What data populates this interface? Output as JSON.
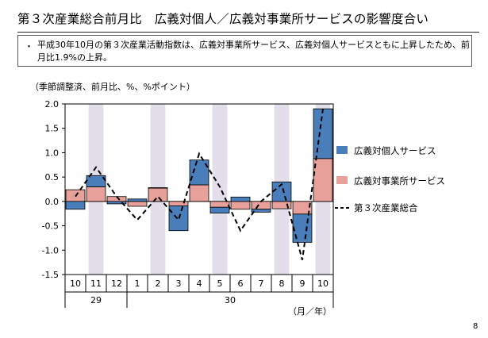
{
  "title": "第３次産業総合前月比　広義対個人／広義対事業所サービスの影響度合い",
  "summary": {
    "bullet": "・",
    "text": "平成30年10月の第３次産業活動指数は、広義対事業所サービス、広義対個人サービスともに上昇したため、前月比1.9%の上昇。"
  },
  "unit_note": "（季節調整済、前月比、%、%ポイント）",
  "page_number": "8",
  "chart_data": {
    "type": "bar",
    "stacked": true,
    "categories": [
      "10",
      "11",
      "12",
      "1",
      "2",
      "3",
      "4",
      "5",
      "6",
      "7",
      "8",
      "9",
      "10"
    ],
    "year_labels": [
      {
        "label": "29",
        "from": 0,
        "to": 2
      },
      {
        "label": "30",
        "from": 3,
        "to": 12
      }
    ],
    "x_unit_label": "（月／年）",
    "ylim": [
      -1.5,
      2.0
    ],
    "yticks": [
      "2.0",
      "1.5",
      "1.0",
      "0.5",
      "0.0",
      "-0.5",
      "-1.0",
      "-1.5"
    ],
    "shaded_categories": [
      1,
      4,
      7,
      10,
      12
    ],
    "series": [
      {
        "name": "広義対個人サービス",
        "kind": "bar",
        "color": "#4a7ebb",
        "values": [
          -0.16,
          0.23,
          -0.05,
          0.05,
          0.0,
          -0.51,
          0.51,
          -0.12,
          0.09,
          -0.06,
          0.4,
          -0.58,
          1.02
        ]
      },
      {
        "name": "広義対事業所サービス",
        "kind": "bar",
        "color": "#e8a09a",
        "values": [
          0.24,
          0.3,
          0.1,
          -0.1,
          0.28,
          -0.09,
          0.34,
          -0.12,
          -0.16,
          -0.16,
          -0.15,
          -0.26,
          0.88
        ]
      },
      {
        "name": "第３次産業総合",
        "kind": "line",
        "dashed": true,
        "color": "#000000",
        "values": [
          0.1,
          0.7,
          0.1,
          -0.38,
          0.1,
          -0.38,
          0.98,
          0.3,
          -0.6,
          0.0,
          0.35,
          -1.2,
          1.9
        ]
      }
    ],
    "legend_position": "right",
    "grid": false
  }
}
